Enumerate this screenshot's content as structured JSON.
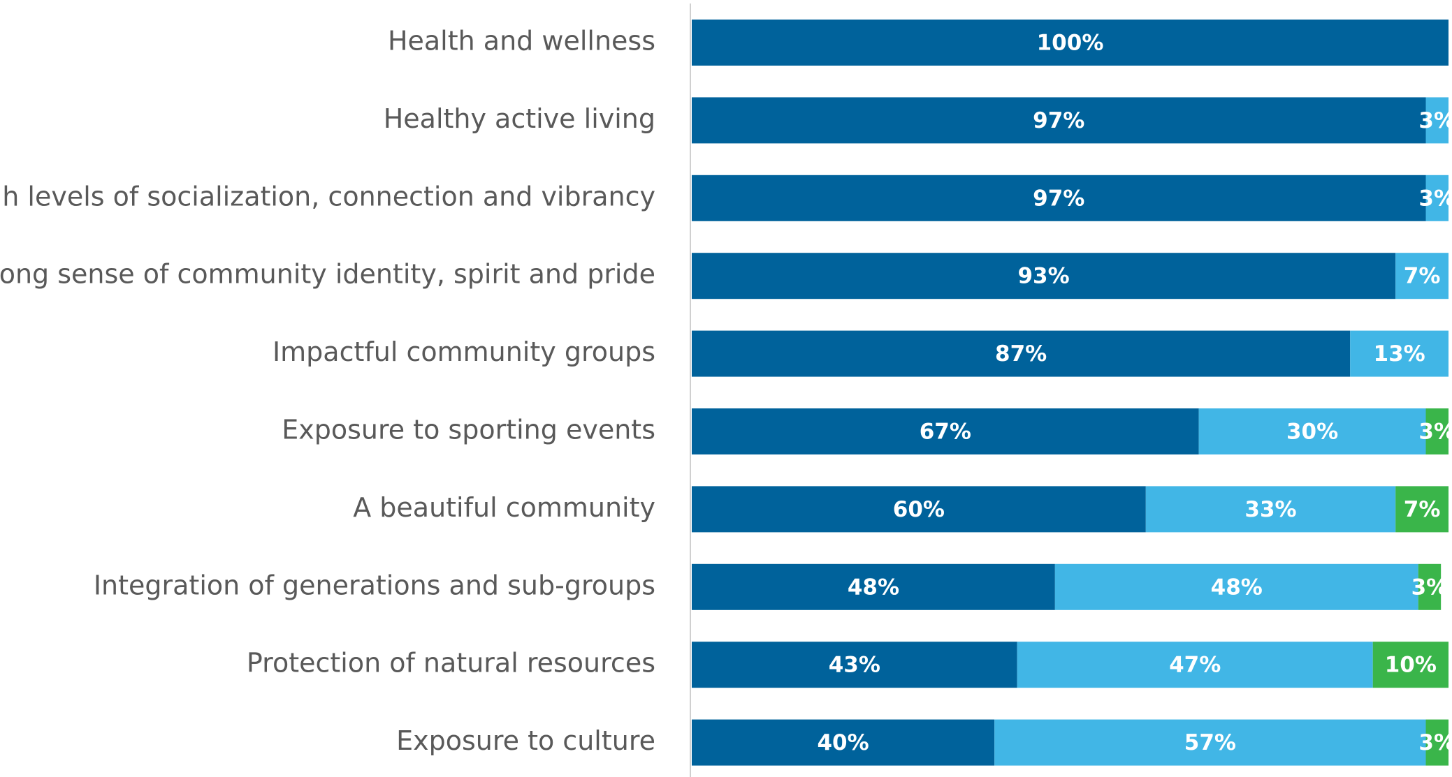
{
  "chart_data": {
    "type": "stacked-bar-horizontal",
    "categories": [
      "Health and wellness",
      "Healthy active living",
      "High levels of socialization, connection and vibrancy",
      "Strong sense of community identity, spirit and pride",
      "Impactful community groups",
      "Exposure to sporting events",
      "A beautiful community",
      "Integration of generations and sub-groups",
      "Protection of natural resources",
      "Exposure to culture"
    ],
    "series": [
      {
        "color": "#00629b",
        "values": [
          100,
          97,
          97,
          93,
          87,
          67,
          60,
          48,
          43,
          40
        ],
        "value_labels": [
          "100%",
          "97%",
          "97%",
          "93%",
          "87%",
          "67%",
          "60%",
          "48%",
          "43%",
          "40%"
        ]
      },
      {
        "color": "#41b6e6",
        "values": [
          null,
          3,
          3,
          7,
          13,
          30,
          33,
          48,
          47,
          57
        ],
        "value_labels": [
          null,
          "3%",
          "3%",
          "7%",
          "13%",
          "30%",
          "33%",
          "48%",
          "47%",
          "57%"
        ]
      },
      {
        "color": "#3ab54a",
        "values": [
          null,
          null,
          null,
          null,
          null,
          3,
          7,
          3,
          10,
          3
        ],
        "value_labels": [
          null,
          null,
          null,
          null,
          null,
          "3%",
          "7%",
          "3%",
          "10%",
          "3%"
        ]
      }
    ],
    "xlim": [
      0,
      100
    ]
  }
}
